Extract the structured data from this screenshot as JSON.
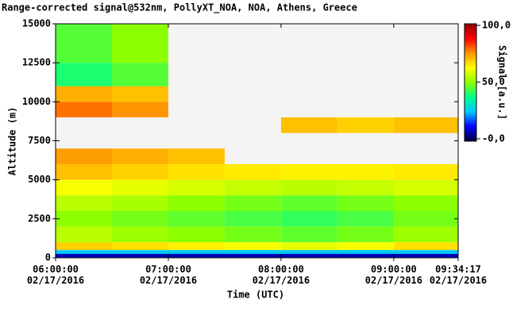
{
  "chart_data": {
    "type": "heatmap",
    "title": "Range-corrected signal@532nm, PollyXT_NOA, NOA, Athens, Greece",
    "x_label": "Time (UTC)",
    "y_label": "Altitude (m)",
    "colorbar_label": "Signal [a.u.]",
    "x_edges": [
      6,
      6.5,
      7,
      7.5,
      8,
      8.5,
      9,
      9.5714
    ],
    "y_edges": [
      0,
      250,
      500,
      1000,
      2000,
      3000,
      4000,
      5000,
      6000,
      7000,
      8000,
      9000,
      10000,
      11000,
      12500,
      15000
    ],
    "z": [
      [
        8,
        8,
        8,
        8,
        8,
        8,
        8
      ],
      [
        25,
        25,
        25,
        25,
        25,
        25,
        25
      ],
      [
        68,
        66,
        64,
        62,
        60,
        62,
        66
      ],
      [
        55,
        52,
        50,
        48,
        46,
        48,
        52
      ],
      [
        50,
        48,
        46,
        44,
        42,
        44,
        48
      ],
      [
        55,
        53,
        50,
        48,
        46,
        48,
        50
      ],
      [
        62,
        60,
        58,
        56,
        55,
        56,
        58
      ],
      [
        70,
        68,
        66,
        65,
        64,
        64,
        65
      ],
      [
        74,
        72,
        70,
        null,
        null,
        null,
        null
      ],
      [
        null,
        null,
        null,
        null,
        null,
        null,
        null
      ],
      [
        null,
        null,
        null,
        null,
        70,
        68,
        70
      ],
      [
        78,
        75,
        null,
        null,
        null,
        null,
        null
      ],
      [
        72,
        70,
        null,
        null,
        null,
        null,
        null
      ],
      [
        40,
        45,
        null,
        null,
        null,
        null,
        null
      ],
      [
        45,
        50,
        null,
        null,
        null,
        null,
        null
      ]
    ],
    "xlim": [
      6,
      9.5714
    ],
    "xticks": [
      {
        "value": 6,
        "label": "06:00:00"
      },
      {
        "value": 7,
        "label": "07:00:00"
      },
      {
        "value": 8,
        "label": "08:00:00"
      },
      {
        "value": 9,
        "label": "09:00:00"
      },
      {
        "value": 9.5714,
        "label": "09:34:17"
      }
    ],
    "xtick_dates": [
      "02/17/2016",
      "02/17/2016",
      "02/17/2016",
      "02/17/2016",
      "02/17/2016"
    ],
    "ylim": [
      0,
      15000
    ],
    "yticks": [
      0,
      2500,
      5000,
      7500,
      10000,
      12500,
      15000
    ],
    "clim": [
      0,
      100
    ],
    "cticks": [
      {
        "value": 100,
        "label": "100,0"
      },
      {
        "value": 50,
        "label": "50,0"
      },
      {
        "value": 0,
        "label": "-0,0"
      }
    ],
    "colorscale": [
      "#00003a",
      "#0000ff",
      "#00c8ff",
      "#00ff8c",
      "#8cff00",
      "#ffff00",
      "#ff9600",
      "#ff0000",
      "#8c0000"
    ]
  }
}
